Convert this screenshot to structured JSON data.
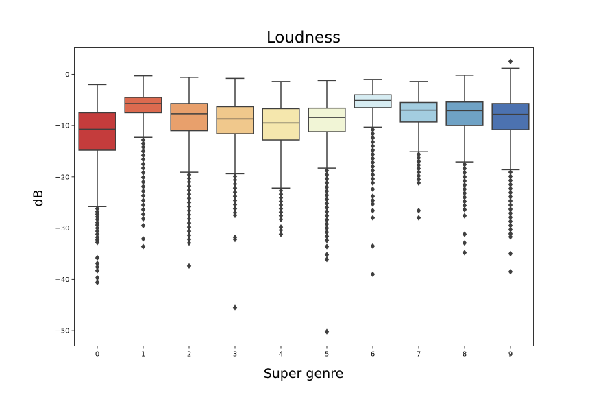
{
  "chart_data": {
    "type": "box",
    "title": "Loudness",
    "xlabel": "Super genre",
    "ylabel": "dB",
    "categories": [
      "0",
      "1",
      "2",
      "3",
      "4",
      "5",
      "6",
      "7",
      "8",
      "9"
    ],
    "ylim": [
      -53,
      5.2
    ],
    "yticks": [
      0,
      -10,
      -20,
      -30,
      -40,
      -50
    ],
    "ytick_labels": [
      "0",
      "−10",
      "−20",
      "−30",
      "−40",
      "−50"
    ],
    "grid": false,
    "legend": "none",
    "boxes": [
      {
        "category": "0",
        "color": "#c43c3c",
        "whisker_high": -2.0,
        "q3": -7.5,
        "median": -10.7,
        "q1": -14.8,
        "whisker_low": -25.8,
        "outliers": [
          -26.2,
          -26.8,
          -27.3,
          -27.8,
          -28.3,
          -28.9,
          -29.4,
          -30.0,
          -30.6,
          -31.2,
          -31.8,
          -32.3,
          -32.8,
          -35.8,
          -36.9,
          -37.6,
          -38.3,
          -39.7,
          -40.6
        ]
      },
      {
        "category": "1",
        "color": "#dc6a4f",
        "whisker_high": -0.3,
        "q3": -4.5,
        "median": -5.7,
        "q1": -7.5,
        "whisker_low": -12.3,
        "outliers": [
          -12.8,
          -13.5,
          -14.2,
          -15.0,
          -15.8,
          -16.6,
          -17.5,
          -18.3,
          -19.2,
          -20.1,
          -21.0,
          -21.9,
          -22.8,
          -23.7,
          -24.6,
          -25.5,
          -26.4,
          -27.3,
          -28.2,
          -29.5,
          -32.1,
          -33.6
        ]
      },
      {
        "category": "2",
        "color": "#e8a06c",
        "whisker_high": -0.6,
        "q3": -5.7,
        "median": -7.7,
        "q1": -11.0,
        "whisker_low": -19.1,
        "outliers": [
          -19.6,
          -20.3,
          -21.0,
          -21.8,
          -22.6,
          -23.4,
          -24.2,
          -25.0,
          -25.8,
          -26.6,
          -27.4,
          -28.2,
          -29.0,
          -29.8,
          -30.6,
          -31.4,
          -32.2,
          -32.9,
          -37.4
        ]
      },
      {
        "category": "3",
        "color": "#f0c88c",
        "whisker_high": -0.8,
        "q3": -6.3,
        "median": -8.7,
        "q1": -11.6,
        "whisker_low": -19.4,
        "outliers": [
          -19.9,
          -20.6,
          -21.4,
          -22.2,
          -23.0,
          -23.8,
          -24.6,
          -25.4,
          -26.2,
          -27.0,
          -27.5,
          -31.8,
          -32.2,
          -45.5
        ]
      },
      {
        "category": "4",
        "color": "#f5e7ad",
        "whisker_high": -1.4,
        "q3": -6.7,
        "median": -9.5,
        "q1": -12.8,
        "whisker_low": -22.2,
        "outliers": [
          -22.7,
          -23.4,
          -24.1,
          -24.8,
          -25.5,
          -26.2,
          -26.9,
          -27.6,
          -28.3,
          -29.8,
          -30.4,
          -31.2
        ]
      },
      {
        "category": "5",
        "color": "#f1f5d6",
        "whisker_high": -1.2,
        "q3": -6.6,
        "median": -8.4,
        "q1": -11.2,
        "whisker_low": -18.3,
        "outliers": [
          -18.8,
          -19.6,
          -20.4,
          -21.2,
          -22.0,
          -22.8,
          -23.6,
          -24.4,
          -25.2,
          -26.0,
          -26.8,
          -27.6,
          -28.4,
          -29.2,
          -30.0,
          -30.8,
          -31.6,
          -32.4,
          -33.6,
          -35.2,
          -36.1,
          -50.2
        ]
      },
      {
        "category": "6",
        "color": "#d6ecf2",
        "whisker_high": -1.0,
        "q3": -4.0,
        "median": -5.1,
        "q1": -6.5,
        "whisker_low": -10.3,
        "outliers": [
          -10.8,
          -11.6,
          -12.4,
          -13.2,
          -14.0,
          -14.8,
          -15.6,
          -16.4,
          -17.2,
          -18.0,
          -18.8,
          -19.6,
          -20.4,
          -21.2,
          -22.4,
          -23.8,
          -24.6,
          -25.3,
          -26.6,
          -28.0,
          -33.5,
          -39.0
        ]
      },
      {
        "category": "7",
        "color": "#a3cde0",
        "whisker_high": -1.4,
        "q3": -5.5,
        "median": -7.0,
        "q1": -9.3,
        "whisker_low": -15.1,
        "outliers": [
          -15.6,
          -16.3,
          -17.0,
          -17.7,
          -18.4,
          -19.1,
          -19.8,
          -20.5,
          -21.2,
          -26.6,
          -28.0
        ]
      },
      {
        "category": "8",
        "color": "#6fa2c5",
        "whisker_high": -0.2,
        "q3": -5.4,
        "median": -7.1,
        "q1": -10.0,
        "whisker_low": -17.1,
        "outliers": [
          -17.6,
          -18.4,
          -19.2,
          -20.0,
          -20.8,
          -21.6,
          -22.4,
          -23.2,
          -24.0,
          -24.8,
          -25.6,
          -26.4,
          -27.6,
          -31.2,
          -32.9,
          -34.8
        ]
      },
      {
        "category": "9",
        "color": "#4c72b0",
        "whisker_high": 1.2,
        "q3": -5.7,
        "median": -7.8,
        "q1": -10.8,
        "whisker_low": -18.6,
        "outliers": [
          2.5,
          -19.1,
          -19.9,
          -20.7,
          -21.5,
          -22.3,
          -23.1,
          -23.9,
          -24.7,
          -25.5,
          -26.3,
          -27.1,
          -27.9,
          -28.7,
          -29.5,
          -30.3,
          -31.1,
          -31.7,
          -35.0,
          -38.5
        ]
      }
    ]
  }
}
